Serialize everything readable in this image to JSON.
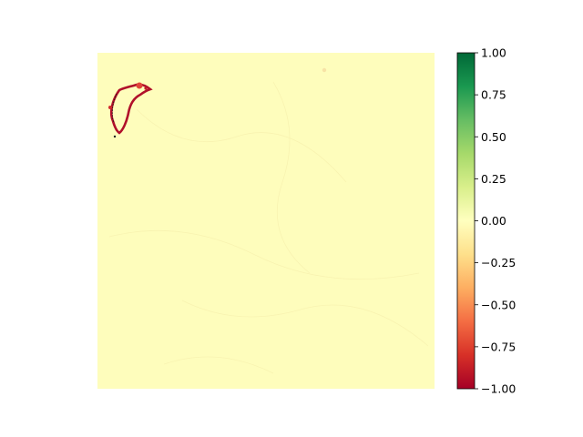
{
  "chart_data": {
    "type": "heatmap",
    "title": "",
    "xlabel": "",
    "ylabel": "",
    "axes_visible": false,
    "colormap": "RdYlGn",
    "background_value": 0.03,
    "vmin": -1.0,
    "vmax": 1.0,
    "colorbar": {
      "position": "right",
      "ticks": [
        1.0,
        0.75,
        0.5,
        0.25,
        0.0,
        -0.25,
        -0.5,
        -0.75,
        -1.0
      ],
      "tick_labels": [
        "1.00",
        "0.75",
        "0.50",
        "0.25",
        "0.00",
        "−0.25",
        "−0.50",
        "−0.75",
        "−1.00"
      ]
    },
    "features": [
      {
        "name": "negative-region-outline",
        "value": -0.95,
        "location": "upper-left",
        "shape": "irregular crescent outline"
      },
      {
        "name": "small-blob",
        "value": -0.1,
        "location": "top-center",
        "shape": "small speck"
      }
    ]
  }
}
